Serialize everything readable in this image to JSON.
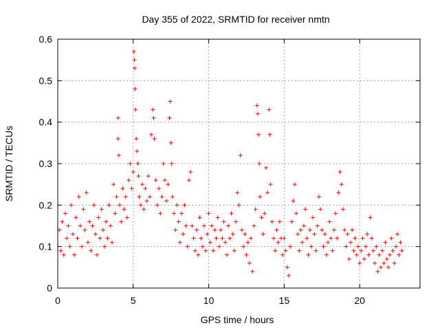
{
  "chart_data": {
    "type": "scatter",
    "title": "Day 355 of 2022, SRMTID for receiver nmtn",
    "xlabel": "GPS time / hours",
    "ylabel": "SRMTID / TECUs",
    "xlim": [
      0,
      24
    ],
    "ylim": [
      0,
      0.6
    ],
    "xticks": [
      0,
      5,
      10,
      15,
      20
    ],
    "yticks": [
      0,
      0.1,
      0.2,
      0.3,
      0.4,
      0.5,
      0.6
    ],
    "xtick_labels": [
      "0",
      "5",
      "10",
      "15",
      "20"
    ],
    "ytick_labels": [
      "0",
      "0.1",
      "0.2",
      "0.3",
      "0.4",
      "0.5",
      "0.6"
    ],
    "grid": true,
    "marker": "+",
    "color": "#ff0000",
    "series": [
      {
        "name": "SRMTID",
        "approximate_points": [
          [
            0.1,
            0.14
          ],
          [
            0.2,
            0.09
          ],
          [
            0.3,
            0.16
          ],
          [
            0.4,
            0.08
          ],
          [
            0.5,
            0.18
          ],
          [
            0.6,
            0.12
          ],
          [
            0.7,
            0.15
          ],
          [
            0.8,
            0.1
          ],
          [
            0.9,
            0.2
          ],
          [
            1.0,
            0.13
          ],
          [
            1.1,
            0.08
          ],
          [
            1.2,
            0.17
          ],
          [
            1.3,
            0.12
          ],
          [
            1.4,
            0.22
          ],
          [
            1.5,
            0.15
          ],
          [
            1.6,
            0.1
          ],
          [
            1.7,
            0.19
          ],
          [
            1.8,
            0.14
          ],
          [
            1.9,
            0.23
          ],
          [
            2.0,
            0.11
          ],
          [
            2.1,
            0.16
          ],
          [
            2.2,
            0.09
          ],
          [
            2.3,
            0.15
          ],
          [
            2.4,
            0.2
          ],
          [
            2.5,
            0.13
          ],
          [
            2.6,
            0.08
          ],
          [
            2.7,
            0.17
          ],
          [
            2.8,
            0.12
          ],
          [
            2.9,
            0.19
          ],
          [
            3.0,
            0.14
          ],
          [
            3.1,
            0.1
          ],
          [
            3.2,
            0.16
          ],
          [
            3.3,
            0.12
          ],
          [
            3.4,
            0.2
          ],
          [
            3.5,
            0.15
          ],
          [
            3.6,
            0.11
          ],
          [
            3.7,
            0.25
          ],
          [
            3.8,
            0.18
          ],
          [
            3.9,
            0.22
          ],
          [
            4.0,
            0.41
          ],
          [
            4.0,
            0.36
          ],
          [
            4.05,
            0.32
          ],
          [
            4.1,
            0.2
          ],
          [
            4.2,
            0.16
          ],
          [
            4.3,
            0.24
          ],
          [
            4.4,
            0.19
          ],
          [
            4.5,
            0.22
          ],
          [
            4.6,
            0.17
          ],
          [
            4.7,
            0.26
          ],
          [
            4.8,
            0.3
          ],
          [
            4.9,
            0.24
          ],
          [
            5.0,
            0.28
          ],
          [
            5.05,
            0.57
          ],
          [
            5.08,
            0.55
          ],
          [
            5.1,
            0.53
          ],
          [
            5.12,
            0.48
          ],
          [
            5.15,
            0.43
          ],
          [
            5.2,
            0.36
          ],
          [
            5.25,
            0.33
          ],
          [
            5.3,
            0.3
          ],
          [
            5.35,
            0.27
          ],
          [
            5.4,
            0.22
          ],
          [
            5.5,
            0.2
          ],
          [
            5.6,
            0.25
          ],
          [
            5.7,
            0.19
          ],
          [
            5.8,
            0.24
          ],
          [
            5.9,
            0.21
          ],
          [
            6.0,
            0.27
          ],
          [
            6.1,
            0.22
          ],
          [
            6.2,
            0.37
          ],
          [
            6.3,
            0.43
          ],
          [
            6.35,
            0.41
          ],
          [
            6.4,
            0.36
          ],
          [
            6.5,
            0.26
          ],
          [
            6.6,
            0.2
          ],
          [
            6.7,
            0.24
          ],
          [
            6.8,
            0.18
          ],
          [
            6.9,
            0.22
          ],
          [
            7.0,
            0.3
          ],
          [
            7.1,
            0.26
          ],
          [
            7.2,
            0.21
          ],
          [
            7.3,
            0.25
          ],
          [
            7.4,
            0.41
          ],
          [
            7.45,
            0.45
          ],
          [
            7.5,
            0.35
          ],
          [
            7.55,
            0.3
          ],
          [
            7.6,
            0.22
          ],
          [
            7.7,
            0.18
          ],
          [
            7.8,
            0.14
          ],
          [
            7.9,
            0.2
          ],
          [
            8.0,
            0.16
          ],
          [
            8.1,
            0.11
          ],
          [
            8.2,
            0.18
          ],
          [
            8.3,
            0.13
          ],
          [
            8.4,
            0.2
          ],
          [
            8.5,
            0.15
          ],
          [
            8.6,
            0.1
          ],
          [
            8.7,
            0.26
          ],
          [
            8.8,
            0.28
          ],
          [
            8.9,
            0.15
          ],
          [
            9.0,
            0.12
          ],
          [
            9.1,
            0.09
          ],
          [
            9.2,
            0.14
          ],
          [
            9.3,
            0.08
          ],
          [
            9.4,
            0.17
          ],
          [
            9.5,
            0.12
          ],
          [
            9.6,
            0.1
          ],
          [
            9.7,
            0.15
          ],
          [
            9.8,
            0.09
          ],
          [
            9.9,
            0.13
          ],
          [
            10.0,
            0.18
          ],
          [
            10.1,
            0.11
          ],
          [
            10.2,
            0.15
          ],
          [
            10.3,
            0.09
          ],
          [
            10.4,
            0.14
          ],
          [
            10.5,
            0.12
          ],
          [
            10.6,
            0.17
          ],
          [
            10.7,
            0.1
          ],
          [
            10.8,
            0.14
          ],
          [
            10.9,
            0.12
          ],
          [
            11.0,
            0.16
          ],
          [
            11.1,
            0.11
          ],
          [
            11.2,
            0.08
          ],
          [
            11.3,
            0.15
          ],
          [
            11.4,
            0.12
          ],
          [
            11.5,
            0.18
          ],
          [
            11.6,
            0.13
          ],
          [
            11.7,
            0.09
          ],
          [
            11.8,
            0.16
          ],
          [
            11.9,
            0.23
          ],
          [
            12.0,
            0.2
          ],
          [
            12.1,
            0.32
          ],
          [
            12.2,
            0.14
          ],
          [
            12.3,
            0.1
          ],
          [
            12.4,
            0.13
          ],
          [
            12.5,
            0.08
          ],
          [
            12.6,
            0.11
          ],
          [
            12.7,
            0.06
          ],
          [
            12.8,
            0.12
          ],
          [
            12.9,
            0.04
          ],
          [
            13.0,
            0.15
          ],
          [
            13.1,
            0.19
          ],
          [
            13.2,
            0.44
          ],
          [
            13.25,
            0.42
          ],
          [
            13.3,
            0.37
          ],
          [
            13.35,
            0.3
          ],
          [
            13.4,
            0.22
          ],
          [
            13.5,
            0.17
          ],
          [
            13.6,
            0.13
          ],
          [
            13.7,
            0.18
          ],
          [
            13.8,
            0.29
          ],
          [
            13.9,
            0.23
          ],
          [
            14.0,
            0.43
          ],
          [
            14.05,
            0.37
          ],
          [
            14.1,
            0.25
          ],
          [
            14.2,
            0.16
          ],
          [
            14.3,
            0.12
          ],
          [
            14.4,
            0.09
          ],
          [
            14.5,
            0.14
          ],
          [
            14.6,
            0.11
          ],
          [
            14.7,
            0.16
          ],
          [
            14.8,
            0.12
          ],
          [
            14.9,
            0.08
          ],
          [
            15.0,
            0.12
          ],
          [
            15.1,
            0.09
          ],
          [
            15.2,
            0.05
          ],
          [
            15.3,
            0.03
          ],
          [
            15.4,
            0.1
          ],
          [
            15.5,
            0.16
          ],
          [
            15.6,
            0.21
          ],
          [
            15.7,
            0.25
          ],
          [
            15.8,
            0.18
          ],
          [
            15.9,
            0.13
          ],
          [
            16.0,
            0.09
          ],
          [
            16.1,
            0.14
          ],
          [
            16.2,
            0.11
          ],
          [
            16.3,
            0.15
          ],
          [
            16.4,
            0.19
          ],
          [
            16.5,
            0.12
          ],
          [
            16.6,
            0.08
          ],
          [
            16.7,
            0.14
          ],
          [
            16.8,
            0.1
          ],
          [
            16.9,
            0.17
          ],
          [
            17.0,
            0.13
          ],
          [
            17.1,
            0.09
          ],
          [
            17.2,
            0.15
          ],
          [
            17.3,
            0.22
          ],
          [
            17.4,
            0.19
          ],
          [
            17.5,
            0.14
          ],
          [
            17.6,
            0.1
          ],
          [
            17.7,
            0.13
          ],
          [
            17.8,
            0.08
          ],
          [
            17.9,
            0.11
          ],
          [
            18.0,
            0.16
          ],
          [
            18.1,
            0.12
          ],
          [
            18.2,
            0.09
          ],
          [
            18.3,
            0.14
          ],
          [
            18.4,
            0.18
          ],
          [
            18.5,
            0.12
          ],
          [
            18.6,
            0.23
          ],
          [
            18.7,
            0.28
          ],
          [
            18.8,
            0.25
          ],
          [
            18.9,
            0.19
          ],
          [
            19.0,
            0.14
          ],
          [
            19.1,
            0.1
          ],
          [
            19.2,
            0.13
          ],
          [
            19.3,
            0.07
          ],
          [
            19.4,
            0.11
          ],
          [
            19.5,
            0.14
          ],
          [
            19.6,
            0.09
          ],
          [
            19.7,
            0.12
          ],
          [
            19.8,
            0.08
          ],
          [
            19.9,
            0.1
          ],
          [
            20.0,
            0.06
          ],
          [
            20.1,
            0.09
          ],
          [
            20.2,
            0.12
          ],
          [
            20.3,
            0.07
          ],
          [
            20.4,
            0.1
          ],
          [
            20.5,
            0.13
          ],
          [
            20.6,
            0.08
          ],
          [
            20.7,
            0.17
          ],
          [
            20.8,
            0.12
          ],
          [
            20.9,
            0.09
          ],
          [
            21.0,
            0.06
          ],
          [
            21.1,
            0.1
          ],
          [
            21.2,
            0.04
          ],
          [
            21.3,
            0.08
          ],
          [
            21.4,
            0.05
          ],
          [
            21.5,
            0.09
          ],
          [
            21.6,
            0.06
          ],
          [
            21.7,
            0.11
          ],
          [
            21.8,
            0.07
          ],
          [
            21.9,
            0.05
          ],
          [
            22.0,
            0.08
          ],
          [
            22.1,
            0.12
          ],
          [
            22.2,
            0.09
          ],
          [
            22.3,
            0.06
          ],
          [
            22.4,
            0.1
          ],
          [
            22.5,
            0.13
          ],
          [
            22.6,
            0.08
          ],
          [
            22.7,
            0.11
          ],
          [
            22.8,
            0.09
          ]
        ]
      }
    ]
  }
}
